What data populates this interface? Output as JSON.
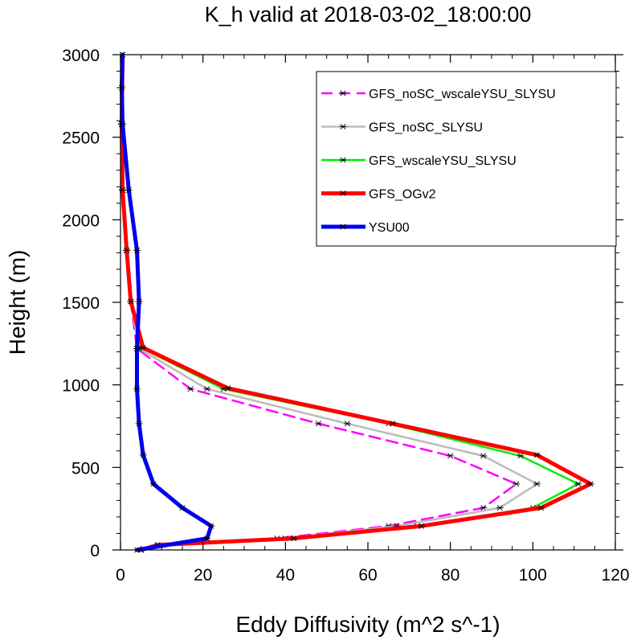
{
  "chart_data": {
    "type": "line",
    "title": "K_h valid at 2018-03-02_18:00:00",
    "xlabel": "Eddy Diffusivity (m^2 s^-1)",
    "ylabel": "Height (m)",
    "xlim": [
      0,
      120
    ],
    "ylim": [
      0,
      3000
    ],
    "x_ticks": [
      0,
      20,
      40,
      60,
      80,
      100,
      120
    ],
    "y_ticks": [
      0,
      500,
      1000,
      1500,
      2000,
      2500,
      3000
    ],
    "x_tick_labels": [
      "0",
      "20",
      "40",
      "60",
      "80",
      "100",
      "120"
    ],
    "y_tick_labels": [
      "0",
      "500",
      "1000",
      "1500",
      "2000",
      "2500",
      "3000"
    ],
    "grid": false,
    "legend_position": "top-right",
    "series": [
      {
        "name": "GFS_noSC_wscaleYSU_SLYSU",
        "color": "#ff00ff",
        "dash": "dashed",
        "x": [
          5,
          9,
          38,
          65,
          88,
          96,
          80,
          48,
          17,
          4,
          2.5,
          1.5,
          0.5,
          0.3,
          0.5
        ],
        "y": [
          0,
          30,
          70,
          145,
          255,
          400,
          570,
          765,
          975,
          1220,
          1505,
          1815,
          2180,
          2580,
          3000
        ]
      },
      {
        "name": "GFS_noSC_SLYSU",
        "color": "#bbbbbb",
        "dash": "solid",
        "x": [
          5,
          9,
          40,
          67,
          92,
          101,
          88,
          55,
          21,
          4.5,
          2.5,
          1.5,
          0.5,
          0.3,
          0.5
        ],
        "y": [
          0,
          30,
          70,
          145,
          255,
          400,
          570,
          765,
          975,
          1220,
          1505,
          1815,
          2180,
          2580,
          3000
        ]
      },
      {
        "name": "GFS_wscaleYSU_SLYSU",
        "color": "#00ee00",
        "dash": "solid",
        "x": [
          5,
          9,
          42,
          72,
          100,
          111,
          97,
          65,
          25,
          5,
          2.5,
          1.5,
          0.5,
          0.3,
          0.5
        ],
        "y": [
          0,
          30,
          70,
          145,
          255,
          400,
          570,
          765,
          975,
          1225,
          1505,
          1815,
          2180,
          2580,
          3000
        ]
      },
      {
        "name": "GFS_OGv2",
        "color": "#ff0000",
        "dash": "solid",
        "x": [
          5,
          9,
          42,
          73,
          102,
          114,
          101,
          66,
          26,
          5.5,
          2.5,
          1.5,
          0.5,
          0.3,
          0.5
        ],
        "y": [
          0,
          30,
          70,
          145,
          255,
          400,
          575,
          765,
          980,
          1225,
          1505,
          1815,
          2180,
          2580,
          3000
        ]
      },
      {
        "name": "YSU00",
        "color": "#0000ee",
        "dash": "solid",
        "x": [
          4,
          21,
          22,
          15,
          8,
          5.5,
          4.5,
          4,
          4,
          4.5,
          4,
          2,
          0.5,
          0.3,
          0.5
        ],
        "y": [
          0,
          70,
          145,
          255,
          400,
          575,
          765,
          975,
          1220,
          1505,
          1815,
          2180,
          2580,
          2800,
          3000
        ]
      }
    ]
  }
}
